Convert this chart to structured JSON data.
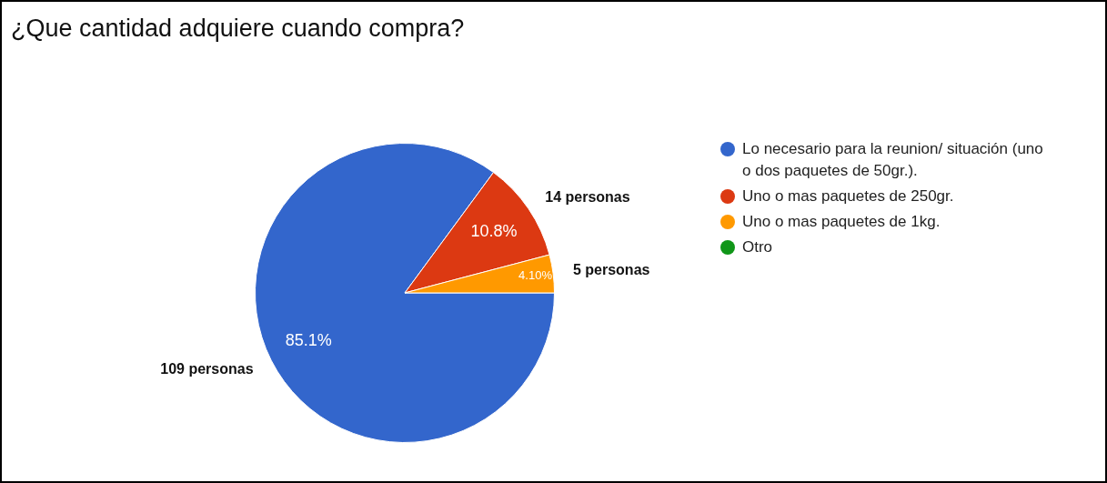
{
  "chart_data": {
    "type": "pie",
    "title": "¿Que cantidad adquiere cuando compra?",
    "categories": [
      "Lo necesario para la reunion/ situación (uno o dos paquetes de 50gr.).",
      "Uno o mas paquetes de 250gr.",
      "Uno o mas paquetes de 1kg.",
      "Otro"
    ],
    "values": [
      85.1,
      10.8,
      4.1,
      0
    ],
    "colors": [
      "#3366cc",
      "#dc3912",
      "#ff9900",
      "#109618"
    ],
    "value_labels": [
      "85.1%",
      "10.8%",
      "4.10%",
      null
    ],
    "annotations": [
      "109 personas",
      "14 personas",
      "5 personas"
    ],
    "legend": "right"
  }
}
